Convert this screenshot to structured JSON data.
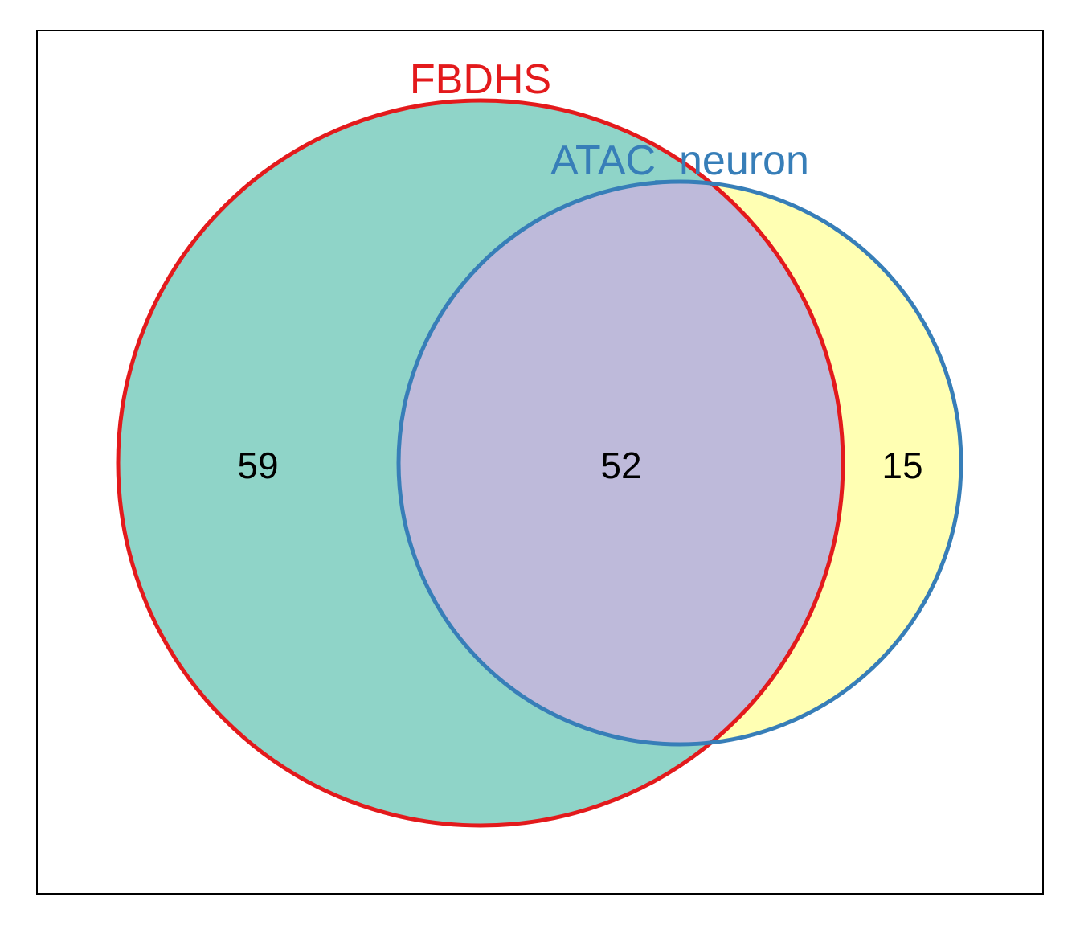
{
  "diagram": {
    "type": "venn",
    "sets": [
      {
        "name": "FBDHS",
        "fill_color": "#8fd4c8",
        "stroke_color": "#e31a1c"
      },
      {
        "name": "ATAC_neuron",
        "fill_color": "#ffffb3",
        "stroke_color": "#377eb8"
      }
    ],
    "intersection_fill_color": "#bebada",
    "regions": {
      "fbdhs_only": "59",
      "intersection": "52",
      "atac_neuron_only": "15"
    }
  }
}
